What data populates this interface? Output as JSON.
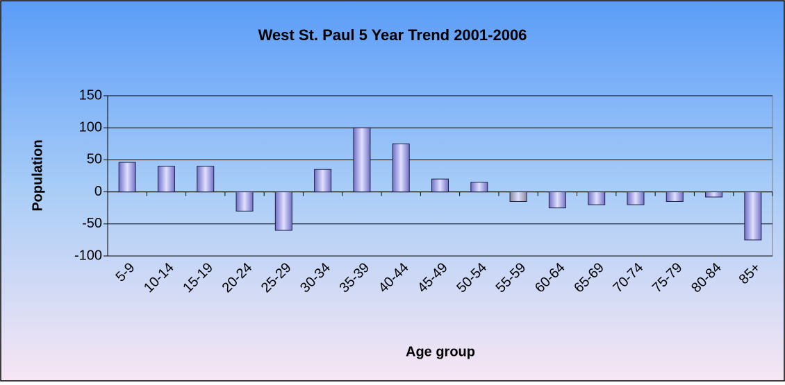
{
  "chart_data": {
    "type": "bar",
    "title": "West St. Paul 5 Year Trend 2001-2006",
    "x_label": "Age group",
    "y_label": "Population",
    "categories": [
      "5-9",
      "10-14",
      "15-19",
      "20-24",
      "25-29",
      "30-34",
      "35-39",
      "40-44",
      "45-49",
      "50-54",
      "55-59",
      "60-64",
      "65-69",
      "70-74",
      "75-79",
      "80-84",
      "85+"
    ],
    "values": [
      46,
      40,
      40,
      -30,
      -60,
      35,
      100,
      75,
      20,
      15,
      -15,
      -25,
      -20,
      -20,
      -15,
      -8,
      -75
    ],
    "colors": [
      "#7070c8",
      "#7070c8",
      "#7070c8",
      "#7070c8",
      "#7070c8",
      "#7070c8",
      "#7070c8",
      "#7070c8",
      "#7070c8",
      "#7070c8",
      "#8a8a9a",
      "#7070c8",
      "#7070c8",
      "#7070c8",
      "#7070c8",
      "#7070c8",
      "#7070c8"
    ],
    "ylim": [
      -100,
      150
    ],
    "yticks": [
      -100,
      -50,
      0,
      50,
      100,
      150
    ],
    "grid": true
  }
}
